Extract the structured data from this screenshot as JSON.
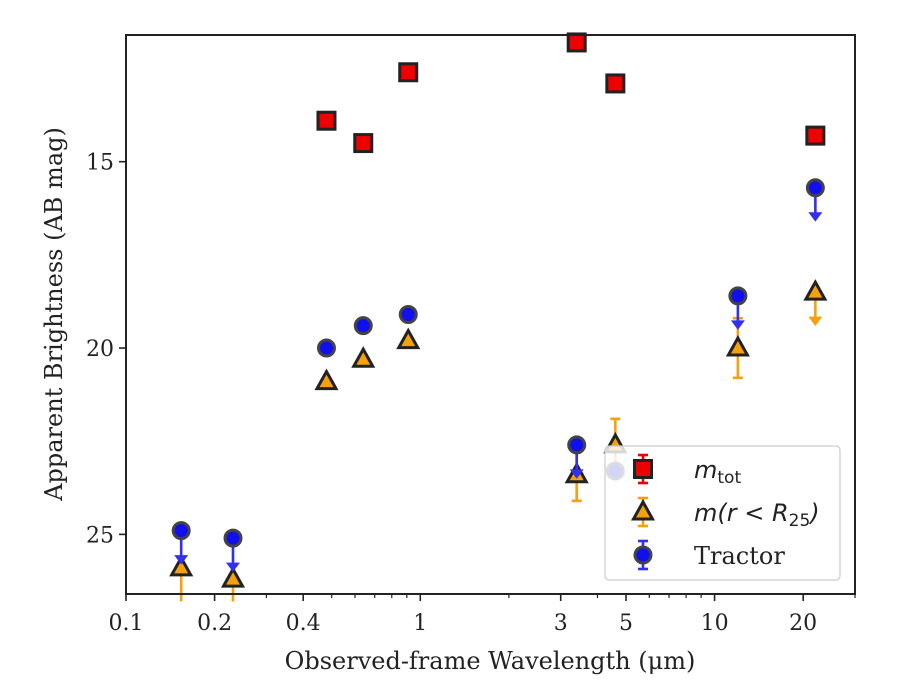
{
  "chart_data": {
    "type": "scatter",
    "xlabel": "Observed-frame Wavelength (μm)",
    "ylabel": "Apparent Brightness (AB mag)",
    "xscale": "log",
    "yaxis_inverted": true,
    "xlim": [
      0.1,
      30
    ],
    "ylim": [
      26.6,
      11.6
    ],
    "xticks": [
      {
        "value": 0.1,
        "label": "0.1"
      },
      {
        "value": 0.2,
        "label": "0.2"
      },
      {
        "value": 0.4,
        "label": "0.4"
      },
      {
        "value": 1,
        "label": "1"
      },
      {
        "value": 3,
        "label": "3"
      },
      {
        "value": 5,
        "label": "5"
      },
      {
        "value": 10,
        "label": "10"
      },
      {
        "value": 20,
        "label": "20"
      }
    ],
    "yticks": [
      {
        "value": 15,
        "label": "15"
      },
      {
        "value": 20,
        "label": "20"
      },
      {
        "value": 25,
        "label": "25"
      }
    ],
    "grid": false,
    "legend_position": "lower-right",
    "series": [
      {
        "key": "m_tot",
        "legend": {
          "main": "m",
          "sub": "tot",
          "math": true
        },
        "marker": "square",
        "fill": "#ee0000",
        "edge": "#222222",
        "errcolor": "#ee0000",
        "points": [
          {
            "x": 0.48,
            "y": 13.9
          },
          {
            "x": 0.64,
            "y": 14.5
          },
          {
            "x": 0.91,
            "y": 12.6
          },
          {
            "x": 3.4,
            "y": 11.8
          },
          {
            "x": 4.6,
            "y": 12.9
          },
          {
            "x": 22,
            "y": 14.3
          }
        ]
      },
      {
        "key": "m_r_lt_R25",
        "legend": {
          "main": "m(r < R",
          "sub": "25",
          "tail": ")",
          "math": true
        },
        "marker": "triangle",
        "fill": "#f5a00f",
        "edge": "#222222",
        "errcolor": "#f5a00f",
        "points": [
          {
            "x": 0.154,
            "y": 25.9,
            "err_down": 0.9
          },
          {
            "x": 0.231,
            "y": 26.2,
            "err_down": 0.6
          },
          {
            "x": 0.48,
            "y": 20.9
          },
          {
            "x": 0.64,
            "y": 20.3
          },
          {
            "x": 0.91,
            "y": 19.8
          },
          {
            "x": 3.4,
            "y": 23.4,
            "err": 0.7
          },
          {
            "x": 4.6,
            "y": 22.6,
            "err": 0.7
          },
          {
            "x": 12,
            "y": 20.0,
            "err": 0.8
          },
          {
            "x": 22,
            "y": 18.5,
            "upper_limit": true
          }
        ]
      },
      {
        "key": "tractor",
        "legend": {
          "main": "Tractor",
          "math": false
        },
        "marker": "circle",
        "fill": "#1010ee",
        "edge": "#444444",
        "errcolor": "#3030ee",
        "points": [
          {
            "x": 0.154,
            "y": 24.9,
            "upper_limit": true
          },
          {
            "x": 0.231,
            "y": 25.1,
            "upper_limit": true
          },
          {
            "x": 0.48,
            "y": 20.0
          },
          {
            "x": 0.64,
            "y": 19.4
          },
          {
            "x": 0.91,
            "y": 19.1
          },
          {
            "x": 3.4,
            "y": 22.6,
            "upper_limit": true
          },
          {
            "x": 4.6,
            "y": 23.3
          },
          {
            "x": 12,
            "y": 18.6,
            "upper_limit": true
          },
          {
            "x": 22,
            "y": 15.7,
            "upper_limit": true
          }
        ]
      }
    ]
  }
}
